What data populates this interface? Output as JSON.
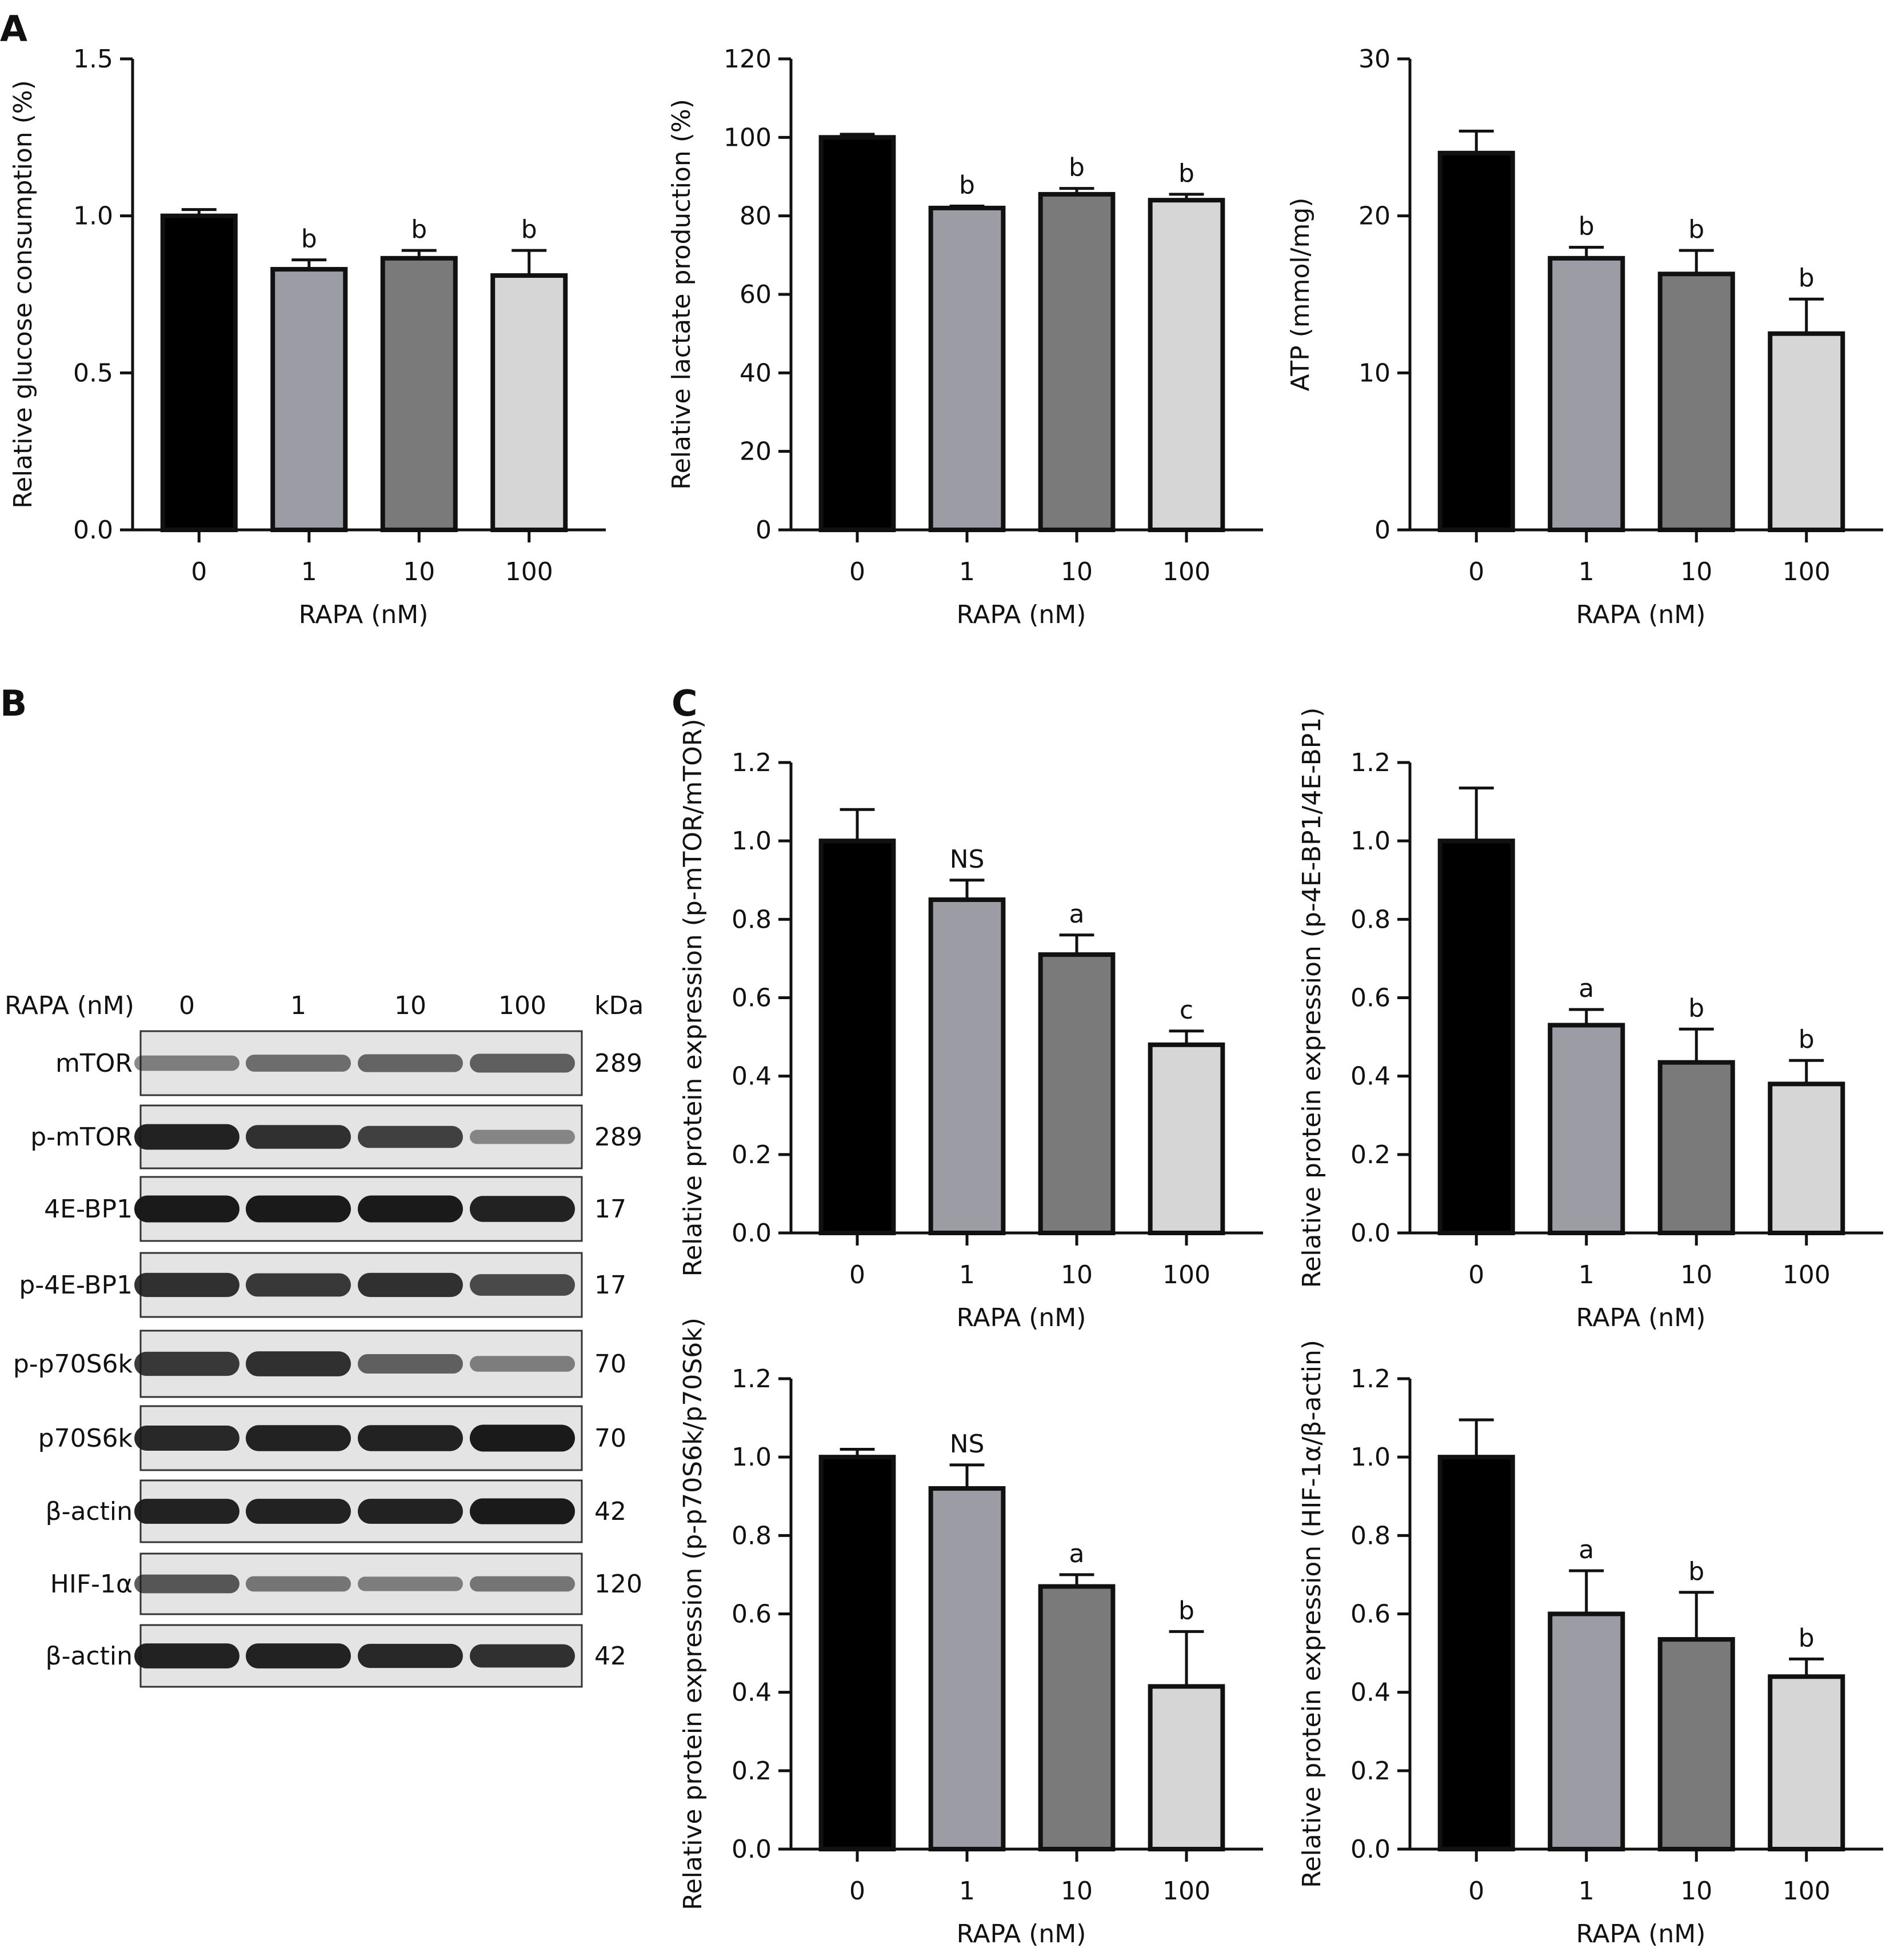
{
  "panel_labels": {
    "A": "A",
    "B": "B",
    "C": "C"
  },
  "colors": {
    "group_0": "#000000",
    "group_1": "#9c9ca4",
    "group_10": "#7a7a7a",
    "group_100": "#d6d6d6",
    "axis": "#111111",
    "band": "#1a1a1a"
  },
  "chart_data": [
    {
      "id": "glucose",
      "panel": "A",
      "type": "bar",
      "title": "",
      "xlabel": "RAPA (nM)",
      "ylabel": "Relative glucose consumption (%)",
      "categories": [
        "0",
        "1",
        "10",
        "100"
      ],
      "values": [
        1.0,
        0.83,
        0.865,
        0.81
      ],
      "errors": [
        0.02,
        0.03,
        0.025,
        0.08
      ],
      "significance": [
        "",
        "b",
        "b",
        "b"
      ],
      "ylim": [
        0,
        1.5
      ],
      "yticks": [
        0.0,
        0.5,
        1.0,
        1.5
      ],
      "ytick_labels": [
        "0.0",
        "0.5",
        "1.0",
        "1.5"
      ],
      "grid": false,
      "legend": "none"
    },
    {
      "id": "lactate",
      "panel": "A",
      "type": "bar",
      "title": "",
      "xlabel": "RAPA (nM)",
      "ylabel": "Relative lactate production (%)",
      "categories": [
        "0",
        "1",
        "10",
        "100"
      ],
      "values": [
        100,
        82,
        85.5,
        84
      ],
      "errors": [
        0.8,
        0.5,
        1.5,
        1.5
      ],
      "significance": [
        "",
        "b",
        "b",
        "b"
      ],
      "ylim": [
        0,
        120
      ],
      "yticks": [
        0,
        20,
        40,
        60,
        80,
        100,
        120
      ],
      "ytick_labels": [
        "0",
        "20",
        "40",
        "60",
        "80",
        "100",
        "120"
      ],
      "grid": false,
      "legend": "none"
    },
    {
      "id": "atp",
      "panel": "A",
      "type": "bar",
      "title": "",
      "xlabel": "RAPA (nM)",
      "ylabel": "ATP (mmol/mg)",
      "categories": [
        "0",
        "1",
        "10",
        "100"
      ],
      "values": [
        24,
        17.3,
        16.3,
        12.5
      ],
      "errors": [
        1.4,
        0.7,
        1.5,
        2.2
      ],
      "significance": [
        "",
        "b",
        "b",
        "b"
      ],
      "ylim": [
        0,
        30
      ],
      "yticks": [
        0,
        10,
        20,
        30
      ],
      "ytick_labels": [
        "0",
        "10",
        "20",
        "30"
      ],
      "grid": false,
      "legend": "none"
    },
    {
      "id": "p_mtor",
      "panel": "C",
      "type": "bar",
      "title": "",
      "xlabel": "RAPA (nM)",
      "ylabel": "Relative protein expression (p-mTOR/mTOR)",
      "categories": [
        "0",
        "1",
        "10",
        "100"
      ],
      "values": [
        1.0,
        0.85,
        0.71,
        0.48
      ],
      "errors": [
        0.08,
        0.05,
        0.05,
        0.035
      ],
      "significance": [
        "",
        "NS",
        "a",
        "c"
      ],
      "ylim": [
        0,
        1.2
      ],
      "yticks": [
        0.0,
        0.2,
        0.4,
        0.6,
        0.8,
        1.0,
        1.2
      ],
      "ytick_labels": [
        "0.0",
        "0.2",
        "0.4",
        "0.6",
        "0.8",
        "1.0",
        "1.2"
      ],
      "grid": false,
      "legend": "none"
    },
    {
      "id": "p_4ebp1",
      "panel": "C",
      "type": "bar",
      "title": "",
      "xlabel": "RAPA (nM)",
      "ylabel": "Relative protein expression (p-4E-BP1/4E-BP1)",
      "categories": [
        "0",
        "1",
        "10",
        "100"
      ],
      "values": [
        1.0,
        0.53,
        0.435,
        0.38
      ],
      "errors": [
        0.135,
        0.04,
        0.085,
        0.06
      ],
      "significance": [
        "",
        "a",
        "b",
        "b"
      ],
      "ylim": [
        0,
        1.2
      ],
      "yticks": [
        0.0,
        0.2,
        0.4,
        0.6,
        0.8,
        1.0,
        1.2
      ],
      "ytick_labels": [
        "0.0",
        "0.2",
        "0.4",
        "0.6",
        "0.8",
        "1.0",
        "1.2"
      ],
      "grid": false,
      "legend": "none"
    },
    {
      "id": "p_p70s6k",
      "panel": "C",
      "type": "bar",
      "title": "",
      "xlabel": "RAPA (nM)",
      "ylabel": "Relative protein expression (p-p70S6k/p70S6k)",
      "categories": [
        "0",
        "1",
        "10",
        "100"
      ],
      "values": [
        1.0,
        0.92,
        0.67,
        0.415
      ],
      "errors": [
        0.02,
        0.06,
        0.03,
        0.14
      ],
      "significance": [
        "",
        "NS",
        "a",
        "b"
      ],
      "ylim": [
        0,
        1.2
      ],
      "yticks": [
        0.0,
        0.2,
        0.4,
        0.6,
        0.8,
        1.0,
        1.2
      ],
      "ytick_labels": [
        "0.0",
        "0.2",
        "0.4",
        "0.6",
        "0.8",
        "1.0",
        "1.2"
      ],
      "grid": false,
      "legend": "none"
    },
    {
      "id": "hif1a",
      "panel": "C",
      "type": "bar",
      "title": "",
      "xlabel": "RAPA (nM)",
      "ylabel": "Relative protein expression (HIF-1α/β-actin)",
      "categories": [
        "0",
        "1",
        "10",
        "100"
      ],
      "values": [
        1.0,
        0.6,
        0.535,
        0.44
      ],
      "errors": [
        0.095,
        0.11,
        0.12,
        0.045
      ],
      "significance": [
        "",
        "a",
        "b",
        "b"
      ],
      "ylim": [
        0,
        1.2
      ],
      "yticks": [
        0.0,
        0.2,
        0.4,
        0.6,
        0.8,
        1.0,
        1.2
      ],
      "ytick_labels": [
        "0.0",
        "0.2",
        "0.4",
        "0.6",
        "0.8",
        "1.0",
        "1.2"
      ],
      "grid": false,
      "legend": "none"
    }
  ],
  "western_blot": {
    "treatment_label": "RAPA (nM)",
    "lanes": [
      "0",
      "1",
      "10",
      "100"
    ],
    "size_header": "kDa",
    "rows": [
      {
        "protein": "mTOR",
        "kda": "289",
        "intensity": [
          0.35,
          0.45,
          0.5,
          0.55
        ]
      },
      {
        "protein": "p-mTOR",
        "kda": "289",
        "intensity": [
          0.95,
          0.85,
          0.75,
          0.3
        ]
      },
      {
        "protein": "4E-BP1",
        "kda": "17",
        "intensity": [
          1.0,
          1.0,
          1.0,
          0.95
        ]
      },
      {
        "protein": "p-4E-BP1",
        "kda": "17",
        "intensity": [
          0.85,
          0.8,
          0.85,
          0.7
        ]
      },
      {
        "protein": "p-p70S6k",
        "kda": "70",
        "intensity": [
          0.8,
          0.85,
          0.55,
          0.35
        ]
      },
      {
        "protein": "p70S6k",
        "kda": "70",
        "intensity": [
          0.9,
          0.95,
          0.95,
          1.0
        ]
      },
      {
        "protein": "β-actin",
        "kda": "42",
        "intensity": [
          0.95,
          0.95,
          0.95,
          1.0
        ]
      },
      {
        "protein": "HIF-1α",
        "kda": "120",
        "intensity": [
          0.6,
          0.4,
          0.35,
          0.4
        ]
      },
      {
        "protein": "β-actin",
        "kda": "42",
        "intensity": [
          0.95,
          0.95,
          0.9,
          0.85
        ]
      }
    ]
  }
}
